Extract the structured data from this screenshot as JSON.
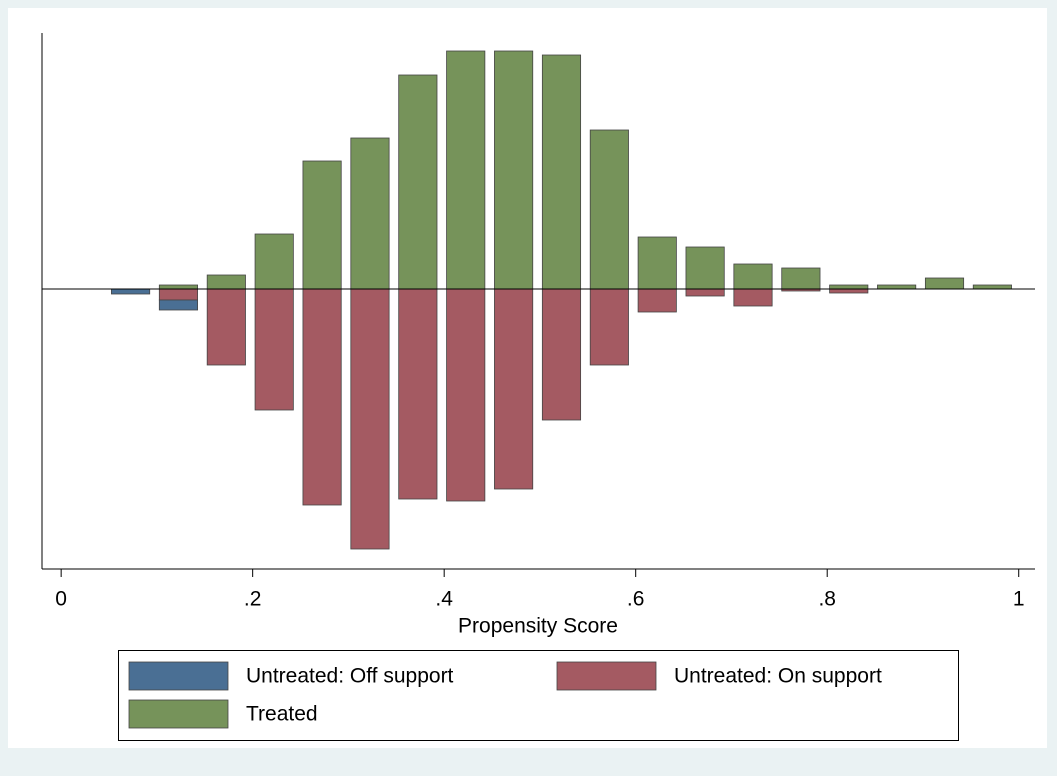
{
  "chart_data": {
    "type": "histogram",
    "x_label": "Propensity Score",
    "bins": [
      0.05,
      0.1,
      0.15,
      0.2,
      0.25,
      0.3,
      0.35,
      0.4,
      0.45,
      0.5,
      0.55,
      0.6,
      0.65,
      0.7,
      0.75,
      0.8,
      0.85,
      0.9,
      0.95,
      1.0
    ],
    "series": [
      {
        "name": "Untreated: Off support",
        "color": "#4a6f94",
        "values": [
          -5,
          -10,
          0,
          0,
          0,
          0,
          0,
          0,
          0,
          0,
          0,
          0,
          0,
          0,
          0,
          0,
          0,
          0,
          0
        ]
      },
      {
        "name": "Untreated: On support",
        "color": "#a45a62",
        "values": [
          0,
          -11,
          -76,
          -121,
          -216,
          -260,
          -210,
          -212,
          -200,
          -131,
          -76,
          -23,
          -7,
          -17,
          -2,
          -4,
          0,
          0,
          0
        ]
      },
      {
        "name": "Treated",
        "color": "#76935a",
        "values": [
          0,
          4,
          14,
          55,
          128,
          151,
          214,
          238,
          238,
          234,
          159,
          52,
          42,
          25,
          21,
          4,
          4,
          11,
          4
        ]
      }
    ],
    "xlim": [
      -0.02,
      1.017
    ],
    "xticks": [
      0,
      {
        "value": 0.2,
        "label": ".2"
      },
      {
        "value": 0.4,
        "label": ".4"
      },
      {
        "value": 0.6,
        "label": ".6"
      },
      {
        "value": 0.8,
        "label": ".8"
      },
      1
    ],
    "ylim": [
      -280,
      256
    ],
    "legend": "bottom"
  }
}
